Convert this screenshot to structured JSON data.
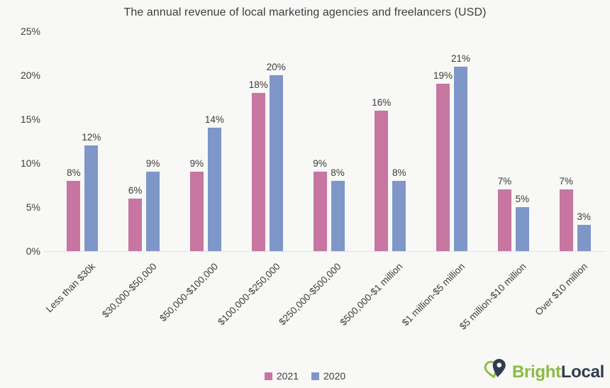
{
  "chart": {
    "title": "The annual revenue of local marketing agencies and freelancers (USD)"
  },
  "chart_data": {
    "type": "bar",
    "title": "The annual revenue of local marketing agencies and freelancers (USD)",
    "categories": [
      "Less than $30k",
      "$30,000-$50,000",
      "$50,000-$100,000",
      "$100,000-$250,000",
      "$250,000-$500,000",
      "$500,000-$1 million",
      "$1 million-$5 million",
      "$5 million-$10 million",
      "Over $10 million"
    ],
    "series": [
      {
        "name": "2021",
        "color": "#c676a1",
        "values": [
          8,
          6,
          9,
          18,
          9,
          16,
          19,
          7,
          7
        ]
      },
      {
        "name": "2020",
        "color": "#7e97c8",
        "values": [
          12,
          9,
          14,
          20,
          8,
          8,
          21,
          5,
          3
        ]
      }
    ],
    "value_label_suffix": "%",
    "xlabel": "",
    "ylabel": "",
    "ylim": [
      0,
      25
    ],
    "y_ticks": [
      0,
      5,
      10,
      15,
      20,
      25
    ],
    "y_tick_labels": [
      "0%",
      "5%",
      "10%",
      "15%",
      "20%",
      "25%"
    ],
    "grid": false,
    "legend_position": "bottom"
  },
  "legend": {
    "items": [
      {
        "label": "2021",
        "color": "#c676a1"
      },
      {
        "label": "2020",
        "color": "#7e97c8"
      }
    ]
  },
  "footer": {
    "brand_part1": "Bright",
    "brand_part2": "Local"
  },
  "colors": {
    "background": "#f8f8f6",
    "bar_2021": "#c676a1",
    "bar_2020": "#7e97c8",
    "brand_green": "#8abc43",
    "brand_navy": "#313d4f",
    "text": "#3c3c3c",
    "baseline": "#e3e3e0"
  }
}
